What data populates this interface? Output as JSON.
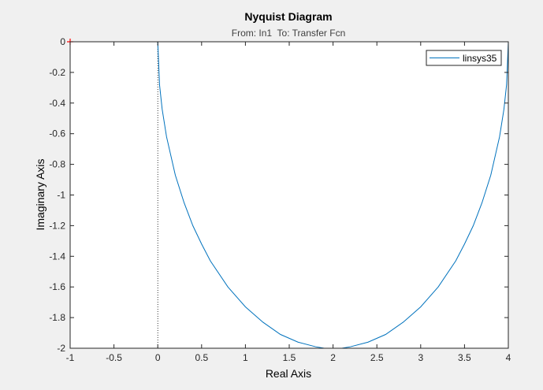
{
  "chart_data": {
    "type": "line",
    "title": "Nyquist Diagram",
    "subtitle": "From: In1  To: Transfer Fcn",
    "xlabel": "Real Axis",
    "ylabel": "Imaginary Axis",
    "xlim": [
      -1,
      4
    ],
    "ylim": [
      -2,
      0
    ],
    "x_ticks": [
      -1,
      -0.5,
      0,
      0.5,
      1,
      1.5,
      2,
      2.5,
      3,
      3.5,
      4
    ],
    "x_tick_labels": [
      "-1",
      "-0.5",
      "0",
      "0.5",
      "1",
      "1.5",
      "2",
      "2.5",
      "3",
      "3.5",
      "4"
    ],
    "y_ticks": [
      0,
      -0.2,
      -0.4,
      -0.6,
      -0.8,
      -1,
      -1.2,
      -1.4,
      -1.6,
      -1.8,
      -2
    ],
    "y_tick_labels": [
      "0",
      "-0.2",
      "-0.4",
      "-0.6",
      "-0.8",
      "-1",
      "-1.2",
      "-1.4",
      "-1.6",
      "-1.8",
      "-2"
    ],
    "grid": false,
    "legend": "top-right",
    "critical_point": {
      "x": -1,
      "y": 0,
      "color": "#ff0000"
    },
    "series": [
      {
        "name": "linsys35",
        "color": "#0072bd",
        "x": [
          0,
          0.02,
          0.05,
          0.1,
          0.2,
          0.3,
          0.4,
          0.5,
          0.6,
          0.8,
          1,
          1.2,
          1.4,
          1.6,
          1.8,
          1.9,
          2,
          2.1,
          2.2,
          2.4,
          2.6,
          2.8,
          3,
          3.2,
          3.4,
          3.5,
          3.6,
          3.7,
          3.8,
          3.9,
          3.95,
          3.98,
          4
        ],
        "y": [
          0,
          -0.28,
          -0.44,
          -0.62,
          -0.87,
          -1.05,
          -1.2,
          -1.32,
          -1.43,
          -1.6,
          -1.73,
          -1.83,
          -1.91,
          -1.96,
          -1.99,
          -2.0,
          -2.0,
          -2.0,
          -1.99,
          -1.96,
          -1.91,
          -1.83,
          -1.73,
          -1.6,
          -1.43,
          -1.32,
          -1.2,
          -1.05,
          -0.87,
          -0.62,
          -0.44,
          -0.28,
          0
        ]
      }
    ]
  }
}
